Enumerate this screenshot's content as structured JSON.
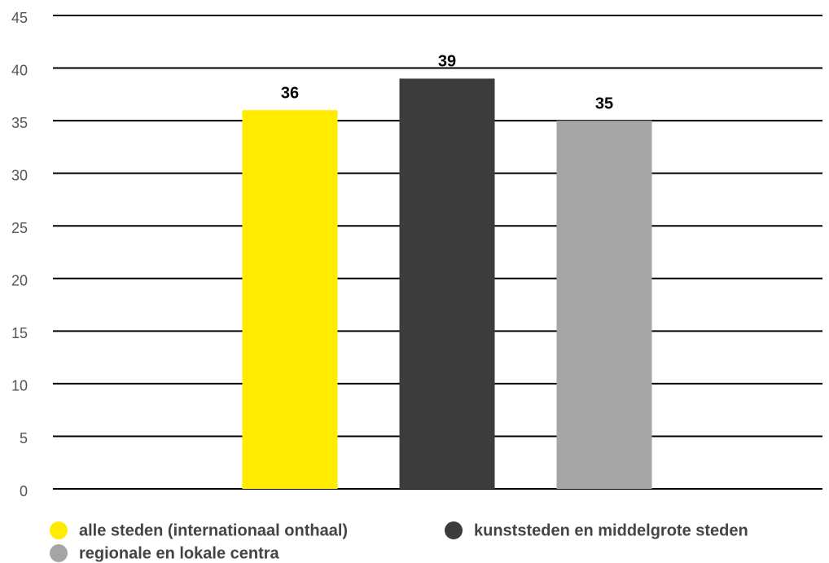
{
  "chart_data": {
    "type": "bar",
    "categories": [
      null
    ],
    "series": [
      {
        "name": "alle steden (internationaal onthaal)",
        "color": "#ffec00",
        "values": [
          36
        ]
      },
      {
        "name": "kunststeden en middelgrote steden",
        "color": "#3c3c3c",
        "values": [
          39
        ]
      },
      {
        "name": "regionale en lokale centra",
        "color": "#a5a5a5",
        "values": [
          35
        ]
      }
    ],
    "ylim": [
      0,
      45
    ],
    "yticks": [
      0,
      5,
      10,
      15,
      20,
      25,
      30,
      35,
      40,
      45
    ],
    "grid": true,
    "legend": "bottom"
  }
}
